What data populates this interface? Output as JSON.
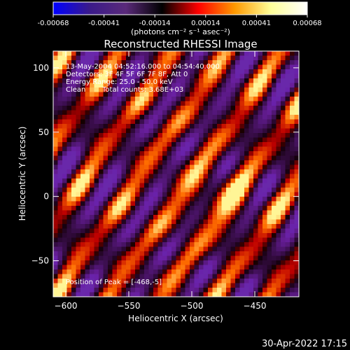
{
  "chart_data": {
    "type": "heatmap",
    "title": "Reconstructed RHESSI Image",
    "xlabel": "Heliocentric X (arcsec)",
    "ylabel": "Heliocentric Y (arcsec)",
    "xlim": [
      -610,
      -415
    ],
    "ylim": [
      -78,
      113
    ],
    "xticks": [
      -600,
      -550,
      -500,
      -450
    ],
    "yticks": [
      -50,
      0,
      50,
      100
    ],
    "colorbar": {
      "min": -0.00068,
      "max": 0.00068,
      "ticks": [
        "-0.00068",
        "-0.00041",
        "-0.00014",
        "0.00014",
        "0.00041",
        "0.00068"
      ],
      "unit_label": "(photons cm⁻² s⁻¹ asec⁻²)",
      "colormap": [
        "#0000ff",
        "#3a1a8a",
        "#5a2a7a",
        "#000000",
        "#ff0000",
        "#ff9900",
        "#ffff99",
        "#ffffff"
      ]
    },
    "annotations": [
      "13-May-2004 04:52:16.000 to 04:54:40.000",
      "Detectors: 3F 4F 5F 6F 7F 8F, Att 0",
      "Energy Range: 25.0 - 50.0 keV",
      "Clean",
      "Total counts: 3.68E+03"
    ],
    "peak_label": "Position of Peak = [-468,-5]",
    "peak": [
      -468,
      -5
    ],
    "grid": false
  },
  "footer": {
    "timestamp": "30-Apr-2022 17:15"
  }
}
